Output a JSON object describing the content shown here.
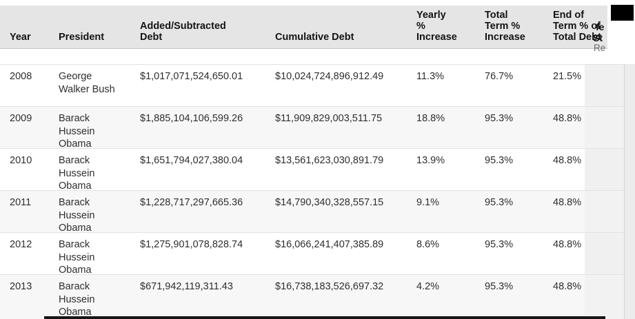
{
  "table": {
    "header": {
      "year": "Year",
      "president": "President",
      "added": [
        "Added/Subtracted",
        "Debt"
      ],
      "cumulative": "Cumulative Debt",
      "yearly": [
        "Yearly",
        "%",
        "Increase"
      ],
      "term": [
        "Total",
        "Term %",
        "Increase"
      ],
      "endterm": [
        "End of",
        "Term % of",
        "Total Debt"
      ]
    },
    "rows": [
      {
        "year": "2008",
        "president": "George Walker Bush",
        "added": "$1,017,071,524,650.01",
        "cumulative": "$10,024,724,896,912.49",
        "yearly": "11.3%",
        "term": "76.7%",
        "endterm": "21.5%"
      },
      {
        "year": "2009",
        "president": "Barack Hussein Obama",
        "added": "$1,885,104,106,599.26",
        "cumulative": "$11,909,829,003,511.75",
        "yearly": "18.8%",
        "term": "95.3%",
        "endterm": "48.8%"
      },
      {
        "year": "2010",
        "president": "Barack Hussein Obama",
        "added": "$1,651,794,027,380.04",
        "cumulative": "$13,561,623,030,891.79",
        "yearly": "13.9%",
        "term": "95.3%",
        "endterm": "48.8%"
      },
      {
        "year": "2011",
        "president": "Barack Hussein Obama",
        "added": "$1,228,717,297,665.36",
        "cumulative": "$14,790,340,328,557.15",
        "yearly": "9.1%",
        "term": "95.3%",
        "endterm": "48.8%"
      },
      {
        "year": "2012",
        "president": "Barack Hussein Obama",
        "added": "$1,275,901,078,828.74",
        "cumulative": "$16,066,241,407,385.89",
        "yearly": "8.6%",
        "term": "95.3%",
        "endterm": "48.8%"
      },
      {
        "year": "2013",
        "president": "Barack Hussein Obama",
        "added": "$671,942,119,311.43",
        "cumulative": "$16,738,183,526,697.32",
        "yearly": "4.2%",
        "term": "95.3%",
        "endterm": "48.8%"
      }
    ],
    "clipped_column": {
      "icon": "black-square",
      "header_fragments": [
        "fe",
        "St",
        "Re"
      ]
    }
  },
  "colors": {
    "header_bg": "#e5e5e5",
    "row_stripe": "#f7f7f7",
    "clipped_column_bg": "#f0f0f0",
    "right_strip_bg": "#ececec",
    "row_border": "#e2e2e2",
    "header_border": "#c6c6c6",
    "text": "#2e2e2e",
    "bottom_bar": "#161616"
  }
}
